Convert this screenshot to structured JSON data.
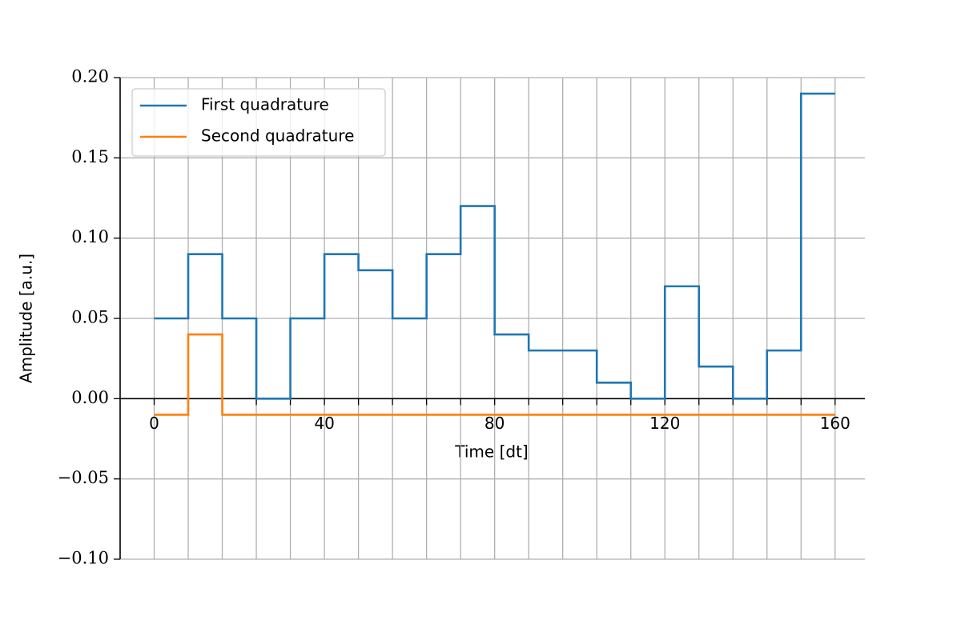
{
  "chart_data": {
    "type": "step",
    "xlabel": "Time [dt]",
    "ylabel": "Amplitude [a.u.]",
    "x": [
      0,
      8,
      16,
      24,
      32,
      40,
      48,
      56,
      64,
      72,
      80,
      88,
      96,
      104,
      112,
      120,
      128,
      136,
      144,
      152,
      160
    ],
    "series": [
      {
        "name": "First quadrature",
        "color": "#1f77b4",
        "values": [
          0.05,
          0.09,
          0.05,
          0.0,
          0.05,
          0.09,
          0.08,
          0.05,
          0.09,
          0.12,
          0.04,
          0.03,
          0.03,
          0.01,
          0.0,
          0.07,
          0.02,
          0.0,
          0.03,
          0.19,
          0.19
        ]
      },
      {
        "name": "Second quadrature",
        "color": "#ff7f0e",
        "values": [
          -0.01,
          0.04,
          -0.01,
          -0.01,
          -0.01,
          -0.01,
          -0.01,
          -0.01,
          -0.01,
          -0.01,
          -0.01,
          -0.01,
          -0.01,
          -0.01,
          -0.01,
          -0.01,
          -0.01,
          -0.01,
          -0.01,
          -0.01,
          -0.01
        ]
      }
    ],
    "xlim": [
      -8,
      167
    ],
    "ylim": [
      -0.1,
      0.2
    ],
    "xticks": [
      0,
      40,
      80,
      120,
      160
    ],
    "x_minor_ticks": [
      0,
      8,
      16,
      24,
      32,
      40,
      48,
      56,
      64,
      72,
      80,
      88,
      96,
      104,
      112,
      120,
      128,
      136,
      144,
      152,
      160
    ],
    "yticks": [
      {
        "value": -0.1,
        "label": "−0.10"
      },
      {
        "value": -0.05,
        "label": "−0.05"
      },
      {
        "value": 0,
        "label": "0.00"
      },
      {
        "value": 0.05,
        "label": "0.05"
      },
      {
        "value": 0.1,
        "label": "0.10"
      },
      {
        "value": 0.15,
        "label": "0.15"
      },
      {
        "value": 0.2,
        "label": "0.20"
      }
    ],
    "grid": true,
    "legend": "upper left"
  }
}
